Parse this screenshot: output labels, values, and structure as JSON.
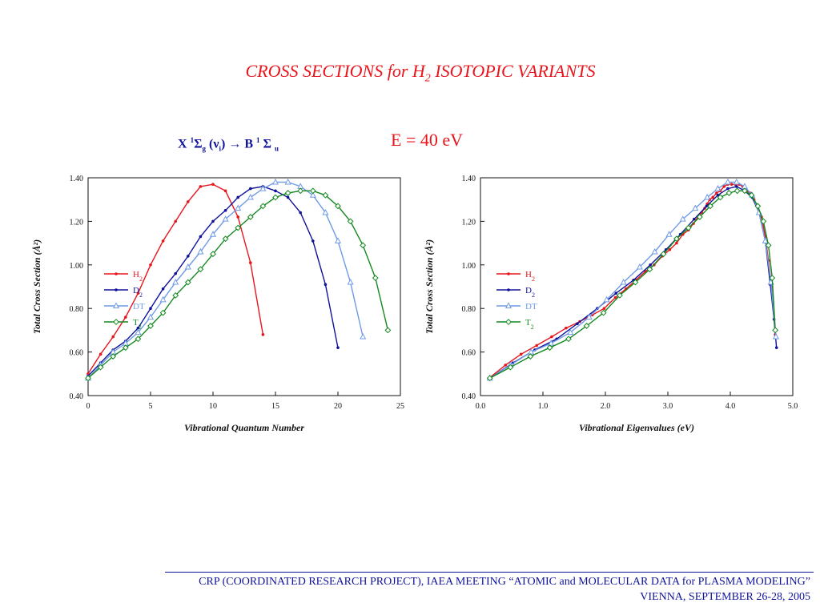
{
  "title": {
    "main": "CROSS SECTIONS for H",
    "sub": "2",
    "rest": " ISOTOPIC VARIANTS"
  },
  "transition": {
    "x": "X ",
    "sup1": "1",
    "sigma1": "Σ",
    "g": "g",
    "nu": " (ν",
    "i": "i",
    "arrow": ") → B ",
    "sup2": "1",
    "sigma2": " Σ ",
    "u": "u"
  },
  "energy_label": "E = 40 eV",
  "footer": {
    "line1": "CRP (COORDINATED RESEARCH PROJECT), IAEA MEETING “ATOMIC and MOLECULAR DATA for PLASMA MODELING”",
    "line2": "VIENNA, SEPTEMBER 26-28, 2005"
  },
  "colors": {
    "H2": "#e8151d",
    "D2": "#10139a",
    "DT": "#6f9ae6",
    "T2": "#13891f",
    "title": "#e8151d",
    "footer": "#10139a"
  },
  "chart_data": [
    {
      "type": "line",
      "xlabel": "Vibrational Quantum Number",
      "ylabel": "Total Cross Section (Å²)",
      "xlim": [
        0,
        25
      ],
      "ylim": [
        0.4,
        1.4
      ],
      "x_ticks": [
        "0",
        "5",
        "10",
        "15",
        "20",
        "25"
      ],
      "y_ticks": [
        "0.40",
        "0.60",
        "0.80",
        "1.00",
        "1.20",
        "1.40"
      ],
      "legend": "center-left",
      "series": [
        {
          "name": "H2",
          "marker": "dot",
          "x": [
            0,
            1,
            2,
            3,
            4,
            5,
            6,
            7,
            8,
            9,
            10,
            11,
            12,
            13,
            14
          ],
          "y": [
            0.5,
            0.59,
            0.67,
            0.76,
            0.87,
            1.0,
            1.11,
            1.2,
            1.29,
            1.36,
            1.37,
            1.34,
            1.22,
            1.01,
            0.68
          ]
        },
        {
          "name": "D2",
          "marker": "dot",
          "x": [
            0,
            1,
            2,
            3,
            4,
            5,
            6,
            7,
            8,
            9,
            10,
            11,
            12,
            13,
            14,
            15,
            16,
            17,
            18,
            19,
            20
          ],
          "y": [
            0.49,
            0.55,
            0.61,
            0.65,
            0.71,
            0.8,
            0.89,
            0.96,
            1.04,
            1.13,
            1.2,
            1.25,
            1.31,
            1.35,
            1.36,
            1.34,
            1.31,
            1.24,
            1.11,
            0.91,
            0.62
          ]
        },
        {
          "name": "DT",
          "marker": "triangle",
          "x": [
            0,
            1,
            2,
            3,
            4,
            5,
            6,
            7,
            8,
            9,
            10,
            11,
            12,
            13,
            14,
            15,
            16,
            17,
            18,
            19,
            20,
            21,
            22
          ],
          "y": [
            0.48,
            0.54,
            0.6,
            0.64,
            0.69,
            0.76,
            0.84,
            0.92,
            0.99,
            1.06,
            1.14,
            1.21,
            1.26,
            1.31,
            1.35,
            1.38,
            1.38,
            1.36,
            1.32,
            1.24,
            1.11,
            0.92,
            0.67
          ]
        },
        {
          "name": "T2",
          "marker": "diamond",
          "x": [
            0,
            1,
            2,
            3,
            4,
            5,
            6,
            7,
            8,
            9,
            10,
            11,
            12,
            13,
            14,
            15,
            16,
            17,
            18,
            19,
            20,
            21,
            22,
            23,
            24
          ],
          "y": [
            0.48,
            0.53,
            0.58,
            0.62,
            0.66,
            0.72,
            0.78,
            0.86,
            0.92,
            0.98,
            1.05,
            1.12,
            1.17,
            1.22,
            1.27,
            1.31,
            1.33,
            1.34,
            1.34,
            1.32,
            1.27,
            1.2,
            1.09,
            0.94,
            0.7
          ]
        }
      ]
    },
    {
      "type": "line",
      "xlabel": "Vibrational Eigenvalues (eV)",
      "ylabel": "Total Cross Section (Å²)",
      "xlim": [
        0.0,
        5.0
      ],
      "ylim": [
        0.4,
        1.4
      ],
      "x_ticks": [
        "0.0",
        "1.0",
        "2.0",
        "3.0",
        "4.0",
        "5.0"
      ],
      "y_ticks": [
        "0.40",
        "0.60",
        "0.80",
        "1.00",
        "1.20",
        "1.40"
      ],
      "legend": "center-left",
      "series": [
        {
          "name": "H2",
          "marker": "dot",
          "x": [
            0.14,
            0.4,
            0.65,
            0.9,
            1.14,
            1.37,
            1.59,
            1.79,
            1.98,
            2.16,
            2.33,
            2.49,
            2.64,
            2.78,
            2.91,
            3.03,
            3.14,
            3.24,
            3.33,
            3.41,
            3.48,
            3.54,
            3.59,
            3.63,
            3.67,
            3.72,
            3.78,
            3.84,
            3.9,
            3.96,
            4.02,
            4.08,
            4.14,
            4.2,
            4.26,
            4.32,
            4.38,
            4.44,
            4.5,
            4.56,
            4.61,
            4.66,
            4.72
          ],
          "y": [
            0.48,
            0.54,
            0.59,
            0.63,
            0.67,
            0.71,
            0.74,
            0.77,
            0.8,
            0.85,
            0.89,
            0.93,
            0.97,
            1.0,
            1.04,
            1.07,
            1.1,
            1.14,
            1.16,
            1.19,
            1.22,
            1.24,
            1.26,
            1.28,
            1.3,
            1.31,
            1.33,
            1.34,
            1.36,
            1.37,
            1.37,
            1.37,
            1.37,
            1.36,
            1.34,
            1.33,
            1.3,
            1.27,
            1.22,
            1.13,
            1.02,
            0.9,
            0.68
          ]
        },
        {
          "name": "D2",
          "marker": "dot",
          "x": [
            0.15,
            0.52,
            0.87,
            1.22,
            1.55,
            1.87,
            2.17,
            2.45,
            2.72,
            2.97,
            3.2,
            3.42,
            3.62,
            3.8,
            3.96,
            4.1,
            4.23,
            4.35,
            4.46,
            4.56,
            4.64,
            4.7,
            4.74
          ],
          "y": [
            0.48,
            0.55,
            0.61,
            0.66,
            0.73,
            0.8,
            0.87,
            0.93,
            1.0,
            1.07,
            1.14,
            1.21,
            1.27,
            1.32,
            1.35,
            1.36,
            1.34,
            1.31,
            1.24,
            1.11,
            0.91,
            0.75,
            0.62
          ]
        },
        {
          "name": "DT",
          "marker": "triangle",
          "x": [
            0.15,
            0.48,
            0.81,
            1.13,
            1.44,
            1.74,
            2.02,
            2.29,
            2.55,
            2.79,
            3.02,
            3.24,
            3.44,
            3.63,
            3.8,
            3.96,
            4.1,
            4.23,
            4.35,
            4.46,
            4.56,
            4.65,
            4.73
          ],
          "y": [
            0.48,
            0.54,
            0.6,
            0.64,
            0.69,
            0.76,
            0.84,
            0.92,
            0.99,
            1.06,
            1.14,
            1.21,
            1.26,
            1.31,
            1.35,
            1.38,
            1.38,
            1.36,
            1.32,
            1.24,
            1.11,
            0.92,
            0.67
          ]
        },
        {
          "name": "T2",
          "marker": "diamond",
          "x": [
            0.15,
            0.48,
            0.8,
            1.11,
            1.41,
            1.7,
            1.97,
            2.23,
            2.48,
            2.71,
            2.93,
            3.14,
            3.33,
            3.51,
            3.68,
            3.84,
            3.98,
            4.11,
            4.23,
            4.34,
            4.44,
            4.53,
            4.61,
            4.67,
            4.72
          ],
          "y": [
            0.48,
            0.53,
            0.58,
            0.62,
            0.66,
            0.72,
            0.78,
            0.86,
            0.92,
            0.98,
            1.05,
            1.12,
            1.17,
            1.22,
            1.27,
            1.31,
            1.33,
            1.34,
            1.34,
            1.32,
            1.27,
            1.2,
            1.09,
            0.94,
            0.7
          ]
        }
      ]
    }
  ]
}
